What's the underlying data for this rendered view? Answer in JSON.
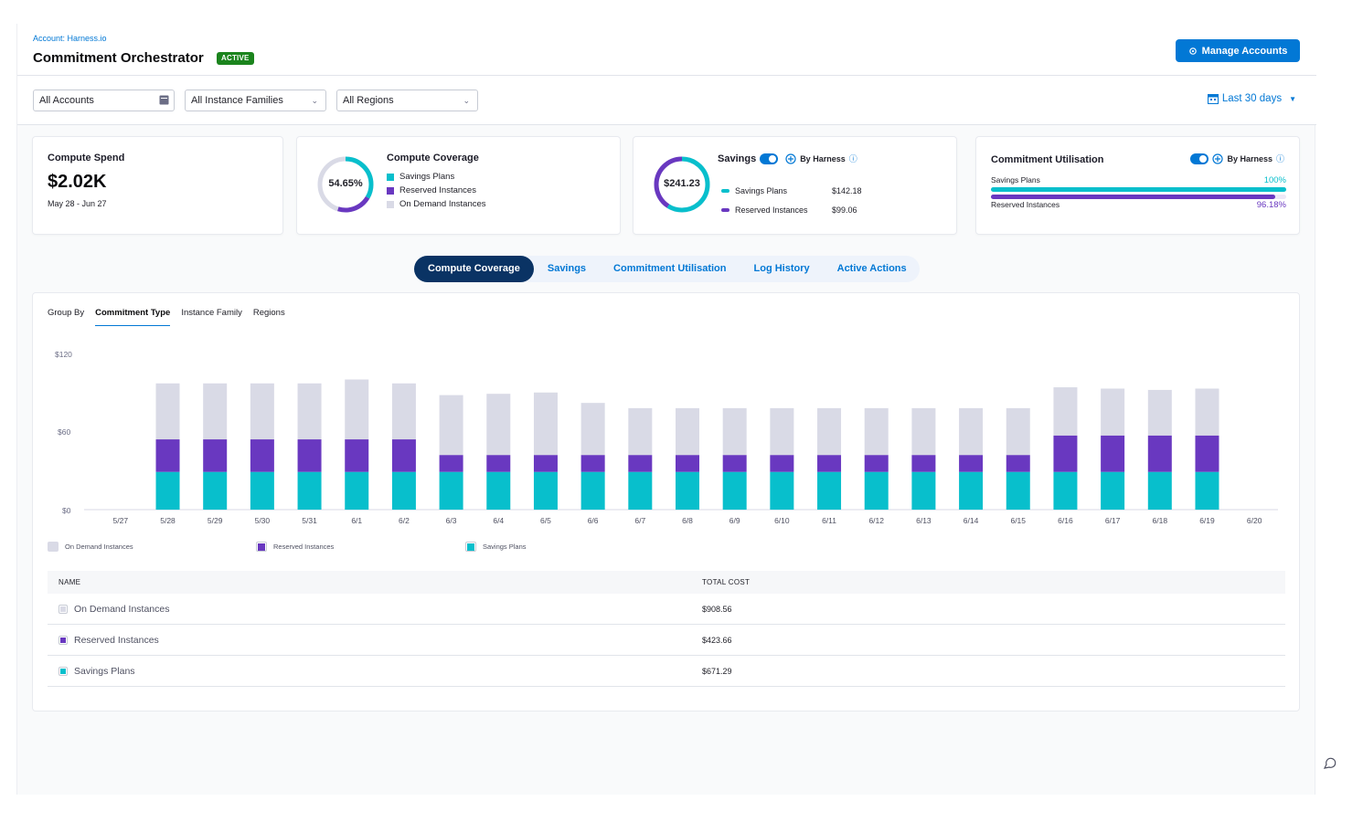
{
  "colors": {
    "accent": "#0278d5",
    "savings": "#08bfcc",
    "reserved": "#6938c0",
    "ondemand": "#d9dae6",
    "active_badge": "#1b841d",
    "active_tab": "#0a3364"
  },
  "header": {
    "breadcrumb": "Account: Harness.io",
    "title": "Commitment Orchestrator",
    "status_badge": "ACTIVE",
    "manage_button": "Manage Accounts",
    "manage_icon": "gear-icon"
  },
  "filters": {
    "accounts": "All Accounts",
    "instance_families": "All Instance Families",
    "regions": "All Regions",
    "date_range": "Last 30 days"
  },
  "cards": {
    "compute_spend": {
      "title": "Compute Spend",
      "value": "$2.02K",
      "range": "May 28 - Jun 27"
    },
    "compute_coverage": {
      "title": "Compute Coverage",
      "percent_label": "54.65%",
      "legend": [
        "Savings Plans",
        "Reserved Instances",
        "On Demand Instances"
      ],
      "ring": {
        "savings": 33.5,
        "reserved": 21.15,
        "ondemand": 45.35
      }
    },
    "savings": {
      "title": "Savings",
      "by_harness": "By Harness",
      "total": "$241.23",
      "items": [
        {
          "label": "Savings Plans",
          "value": "$142.18"
        },
        {
          "label": "Reserved Instances",
          "value": "$99.06"
        }
      ],
      "ring": {
        "savings": 59,
        "reserved": 41
      }
    },
    "utilisation": {
      "title": "Commitment Utilisation",
      "by_harness": "By Harness",
      "savings_label": "Savings Plans",
      "savings_value": "100%",
      "savings_fraction": 1.0,
      "reserved_label": "Reserved Instances",
      "reserved_value": "96.18%",
      "reserved_fraction": 0.9618
    }
  },
  "tabs": [
    "Compute Coverage",
    "Savings",
    "Commitment Utilisation",
    "Log History",
    "Active Actions"
  ],
  "group_by": {
    "label": "Group By",
    "options": [
      "Commitment Type",
      "Instance Family",
      "Regions"
    ]
  },
  "chart_data": {
    "type": "bar",
    "stacked": true,
    "categories": [
      "5/27",
      "5/28",
      "5/29",
      "5/30",
      "5/31",
      "6/1",
      "6/2",
      "6/3",
      "6/4",
      "6/5",
      "6/6",
      "6/7",
      "6/8",
      "6/9",
      "6/10",
      "6/11",
      "6/12",
      "6/13",
      "6/14",
      "6/15",
      "6/16",
      "6/17",
      "6/18",
      "6/19",
      "6/20"
    ],
    "series": [
      {
        "name": "Savings Plans",
        "values": [
          0,
          29,
          29,
          29,
          29,
          29,
          29,
          29,
          29,
          29,
          29,
          29,
          29,
          29,
          29,
          29,
          29,
          29,
          29,
          29,
          29,
          29,
          29,
          29,
          0
        ]
      },
      {
        "name": "Reserved Instances",
        "values": [
          0,
          25,
          25,
          25,
          25,
          25,
          25,
          13,
          13,
          13,
          13,
          13,
          13,
          13,
          13,
          13,
          13,
          13,
          13,
          13,
          28,
          28,
          28,
          28,
          0
        ]
      },
      {
        "name": "On Demand Instances",
        "values": [
          0,
          43,
          43,
          43,
          43,
          46,
          43,
          46,
          47,
          48,
          40,
          36,
          36,
          36,
          36,
          36,
          36,
          36,
          36,
          36,
          37,
          36,
          35,
          36,
          0
        ]
      }
    ],
    "y_ticks": [
      "$120",
      "$60",
      "$0"
    ],
    "ylim": [
      0,
      120
    ]
  },
  "chart_legend": [
    "On Demand Instances",
    "Reserved Instances",
    "Savings Plans"
  ],
  "table": {
    "headers": [
      "NAME",
      "TOTAL COST"
    ],
    "rows": [
      {
        "name": "On Demand Instances",
        "cost": "$908.56"
      },
      {
        "name": "Reserved Instances",
        "cost": "$423.66"
      },
      {
        "name": "Savings Plans",
        "cost": "$671.29"
      }
    ]
  }
}
